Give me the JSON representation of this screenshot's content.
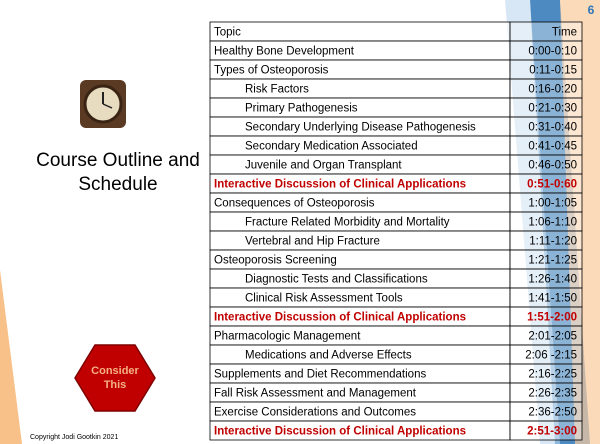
{
  "slide": {
    "number": "6",
    "title_lines": [
      "Course Outline and",
      "Schedule"
    ],
    "callout_lines": [
      "Consider",
      "This"
    ],
    "copyright": "Copyright Jodi Gootkin 2021"
  },
  "table": {
    "header": [
      "Topic",
      "Time"
    ],
    "rows": [
      {
        "topic": "Healthy Bone Development",
        "time": "0:00-0:10"
      },
      {
        "topic": "Types of Osteoporosis",
        "time": "0:11-0:15"
      },
      {
        "topic": "Risk Factors",
        "time": "0:16-0:20",
        "indent": true
      },
      {
        "topic": "Primary Pathogenesis",
        "time": "0:21-0:30",
        "indent": true
      },
      {
        "topic": "Secondary Underlying Disease Pathogenesis",
        "time": "0:31-0:40",
        "indent": true
      },
      {
        "topic": "Secondary Medication Associated",
        "time": "0:41-0:45",
        "indent": true
      },
      {
        "topic": "Juvenile and Organ Transplant",
        "time": "0:46-0:50",
        "indent": true
      },
      {
        "topic": "Interactive Discussion of Clinical Applications",
        "time": "0:51-0:60",
        "emphasis": true
      },
      {
        "topic": "Consequences of Osteoporosis",
        "time": "1:00-1:05"
      },
      {
        "topic": "Fracture Related Morbidity and Mortality",
        "time": "1:06-1:10",
        "indent": true
      },
      {
        "topic": "Vertebral and Hip Fracture",
        "time": "1:11-1:20",
        "indent": true
      },
      {
        "topic": "Osteoporosis Screening",
        "time": "1:21-1:25"
      },
      {
        "topic": "Diagnostic Tests and Classifications",
        "time": "1:26-1:40",
        "indent": true
      },
      {
        "topic": "Clinical Risk Assessment Tools",
        "time": "1:41-1:50",
        "indent": true
      },
      {
        "topic": "Interactive Discussion of Clinical Applications",
        "time": "1:51-2:00",
        "emphasis": true
      },
      {
        "topic": "Pharmacologic Management",
        "time": "2:01-2:05"
      },
      {
        "topic": "Medications and Adverse Effects",
        "time": "2:06 -2:15",
        "indent": true
      },
      {
        "topic": "Supplements and Diet Recommendations",
        "time": "2:16-2:25"
      },
      {
        "topic": "Fall Risk Assessment and Management",
        "time": "2:26-2:35"
      },
      {
        "topic": "Exercise Considerations and Outcomes",
        "time": "2:36-2:50"
      },
      {
        "topic": "Interactive Discussion of Clinical Applications",
        "time": "2:51-3:00",
        "emphasis": true
      }
    ]
  }
}
